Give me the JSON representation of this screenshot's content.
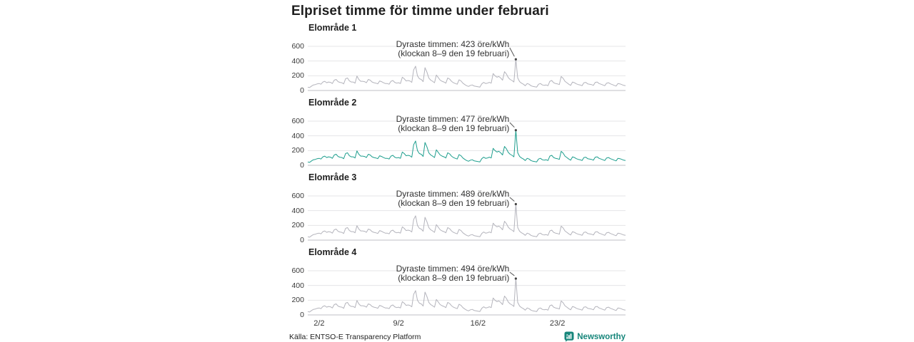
{
  "title": "Elpriset timme för timme under februari",
  "source": "Källa: ENTSO-E Transparency Platform",
  "brand": {
    "name": "Newsworthy",
    "color": "#17867b",
    "icon": "bar-chart-speech-bubble-icon"
  },
  "colors": {
    "gray_series": "#b4b4bc",
    "teal_series": "#1e9e8e",
    "gridline": "#e4e4e7",
    "axis_line": "#bfbfc4",
    "annotation_text": "#333333",
    "leader_line": "#555555",
    "peak_dot": "#444444"
  },
  "chart_data": {
    "type": "line",
    "title": "Elpriset timme för timme under februari",
    "ylabel_unit": "öre/kWh",
    "x_ticks": [
      "2/2",
      "9/2",
      "16/2",
      "23/2"
    ],
    "x_tick_hours": [
      24,
      192,
      360,
      528
    ],
    "total_hours": 672,
    "step_hours": 4,
    "y_ticks": [
      0,
      200,
      400,
      600
    ],
    "ylim": [
      0,
      650
    ],
    "grid": true,
    "peak_index": 110,
    "peak_time": "klockan 8–9 den 19 februari",
    "base_values": [
      45,
      40,
      60,
      75,
      80,
      90,
      95,
      85,
      115,
      125,
      105,
      115,
      110,
      95,
      140,
      150,
      120,
      110,
      105,
      90,
      160,
      170,
      130,
      115,
      115,
      100,
      195,
      150,
      125,
      125,
      120,
      105,
      150,
      140,
      115,
      105,
      100,
      90,
      130,
      120,
      105,
      95,
      95,
      85,
      125,
      135,
      110,
      100,
      105,
      95,
      180,
      160,
      130,
      135,
      130,
      110,
      280,
      330,
      200,
      160,
      150,
      120,
      310,
      250,
      170,
      140,
      125,
      105,
      210,
      175,
      140,
      125,
      115,
      100,
      170,
      155,
      125,
      105,
      95,
      85,
      145,
      130,
      100,
      80,
      65,
      55,
      70,
      75,
      60,
      55,
      50,
      45,
      90,
      110,
      95,
      100,
      110,
      100,
      230,
      200,
      180,
      190,
      170,
      140,
      255,
      225,
      175,
      150,
      135,
      115,
      423,
      170,
      120,
      100,
      85,
      65,
      95,
      85,
      65,
      55,
      50,
      45,
      85,
      95,
      75,
      70,
      75,
      65,
      125,
      135,
      105,
      95,
      90,
      80,
      190,
      165,
      125,
      105,
      85,
      70,
      115,
      105,
      90,
      80,
      75,
      65,
      105,
      110,
      90,
      85,
      80,
      70,
      110,
      115,
      95,
      85,
      75,
      65,
      100,
      105,
      90,
      80,
      70,
      60,
      95,
      90,
      80,
      70,
      65
    ],
    "charts": [
      {
        "label": "Elområde 1",
        "max_value": 423,
        "annotation_line1": "Dyraste timmen: 423 öre/kWh",
        "annotation_line2": "(klockan 8–9 den 19 februari)",
        "color_key": "gray_series"
      },
      {
        "label": "Elområde 2",
        "max_value": 477,
        "annotation_line1": "Dyraste timmen: 477 öre/kWh",
        "annotation_line2": "(klockan 8–9 den 19 februari)",
        "color_key": "teal_series"
      },
      {
        "label": "Elområde 3",
        "max_value": 489,
        "annotation_line1": "Dyraste timmen: 489 öre/kWh",
        "annotation_line2": "(klockan 8–9 den 19 februari)",
        "color_key": "gray_series"
      },
      {
        "label": "Elområde 4",
        "max_value": 494,
        "annotation_line1": "Dyraste timmen: 494 öre/kWh",
        "annotation_line2": "(klockan 8–9 den 19 februari)",
        "color_key": "gray_series"
      }
    ]
  }
}
